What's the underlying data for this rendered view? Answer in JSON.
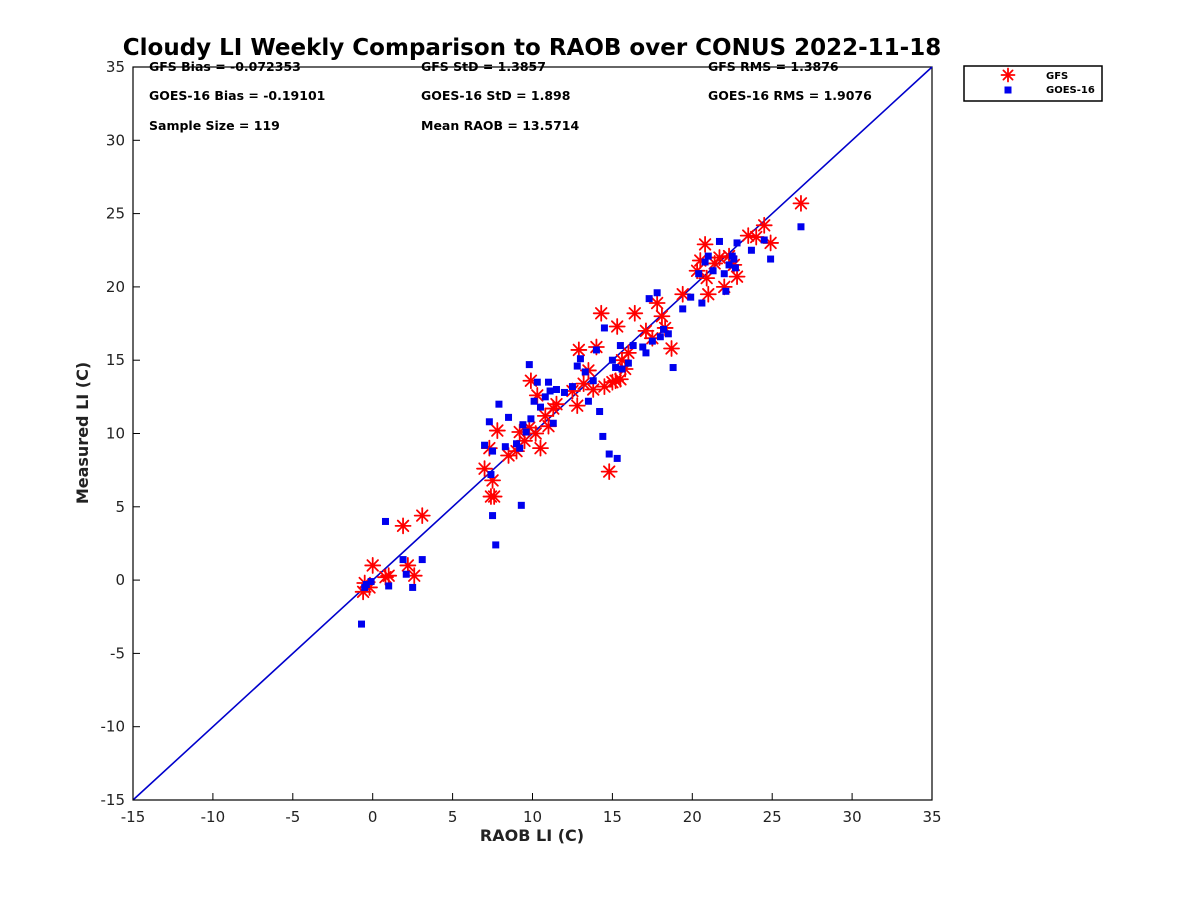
{
  "chart_data": {
    "type": "scatter",
    "title": "Cloudy LI Weekly Comparison to RAOB over CONUS 2022-11-18",
    "xlabel": "RAOB LI (C)",
    "ylabel": "Measured LI (C)",
    "xlim": [
      -15,
      35
    ],
    "ylim": [
      -15,
      35
    ],
    "xticks": [
      "-15",
      "-10",
      "-5",
      "0",
      "5",
      "10",
      "15",
      "20",
      "25",
      "30",
      "35"
    ],
    "yticks": [
      "-15",
      "-10",
      "-5",
      "0",
      "5",
      "10",
      "15",
      "20",
      "25",
      "30",
      "35"
    ],
    "reference_line": {
      "name": "1:1 line",
      "color": "#0000cc"
    },
    "legend": {
      "location": "top-right outside"
    },
    "stats": [
      "GFS Bias = -0.072353",
      "GFS StD = 1.3857",
      "GFS RMS = 1.3876",
      "GOES-16 Bias = -0.19101",
      "GOES-16 StD = 1.898",
      "GOES-16 RMS = 1.9076",
      "Sample Size = 119",
      "Mean RAOB = 13.5714"
    ],
    "series": [
      {
        "name": "GFS",
        "marker": "asterisk",
        "color": "#ff0000",
        "points": [
          [
            -0.6,
            -0.8
          ],
          [
            -0.5,
            -0.2
          ],
          [
            -0.2,
            -0.5
          ],
          [
            0.0,
            1.0
          ],
          [
            0.8,
            0.2
          ],
          [
            1.0,
            0.3
          ],
          [
            1.9,
            3.7
          ],
          [
            2.2,
            1.0
          ],
          [
            2.6,
            0.3
          ],
          [
            3.1,
            4.4
          ],
          [
            7.0,
            7.6
          ],
          [
            7.3,
            9.0
          ],
          [
            7.5,
            6.8
          ],
          [
            7.4,
            5.7
          ],
          [
            7.6,
            5.7
          ],
          [
            7.8,
            10.2
          ],
          [
            8.5,
            8.5
          ],
          [
            9.0,
            8.8
          ],
          [
            9.2,
            10.1
          ],
          [
            9.5,
            9.5
          ],
          [
            9.8,
            10.4
          ],
          [
            9.9,
            13.6
          ],
          [
            10.2,
            10.0
          ],
          [
            10.3,
            12.6
          ],
          [
            10.5,
            9.0
          ],
          [
            10.8,
            11.2
          ],
          [
            11.0,
            10.5
          ],
          [
            11.3,
            11.7
          ],
          [
            11.5,
            12.0
          ],
          [
            12.5,
            12.9
          ],
          [
            12.8,
            11.9
          ],
          [
            12.9,
            15.7
          ],
          [
            13.2,
            13.4
          ],
          [
            13.5,
            14.3
          ],
          [
            13.8,
            13.0
          ],
          [
            14.0,
            15.9
          ],
          [
            14.3,
            18.2
          ],
          [
            14.5,
            13.2
          ],
          [
            14.8,
            7.4
          ],
          [
            15.0,
            13.5
          ],
          [
            15.2,
            13.6
          ],
          [
            15.3,
            17.3
          ],
          [
            15.5,
            13.7
          ],
          [
            15.6,
            15.0
          ],
          [
            15.8,
            14.4
          ],
          [
            16.0,
            15.5
          ],
          [
            16.4,
            18.2
          ],
          [
            17.1,
            17.0
          ],
          [
            17.5,
            16.5
          ],
          [
            17.8,
            18.9
          ],
          [
            18.1,
            18.0
          ],
          [
            18.3,
            17.2
          ],
          [
            18.7,
            15.8
          ],
          [
            19.4,
            19.5
          ],
          [
            20.3,
            21.1
          ],
          [
            20.5,
            21.8
          ],
          [
            20.8,
            22.9
          ],
          [
            20.9,
            20.6
          ],
          [
            21.0,
            19.5
          ],
          [
            21.4,
            21.6
          ],
          [
            21.7,
            22.0
          ],
          [
            22.0,
            20.0
          ],
          [
            22.3,
            22.1
          ],
          [
            22.6,
            21.5
          ],
          [
            22.8,
            20.7
          ],
          [
            23.5,
            23.5
          ],
          [
            24.0,
            23.4
          ],
          [
            24.5,
            24.2
          ],
          [
            24.9,
            23.0
          ],
          [
            26.8,
            25.7
          ]
        ]
      },
      {
        "name": "GOES-16",
        "marker": "square",
        "color": "#0000ee",
        "points": [
          [
            -0.7,
            -3.0
          ],
          [
            -0.5,
            -0.5
          ],
          [
            -0.4,
            -0.3
          ],
          [
            -0.1,
            -0.1
          ],
          [
            0.8,
            4.0
          ],
          [
            1.0,
            -0.4
          ],
          [
            1.9,
            1.4
          ],
          [
            2.1,
            0.4
          ],
          [
            2.5,
            -0.5
          ],
          [
            3.1,
            1.4
          ],
          [
            7.0,
            9.2
          ],
          [
            7.3,
            10.8
          ],
          [
            7.4,
            7.2
          ],
          [
            7.5,
            8.8
          ],
          [
            7.5,
            4.4
          ],
          [
            7.7,
            2.4
          ],
          [
            7.9,
            12.0
          ],
          [
            8.3,
            9.1
          ],
          [
            8.5,
            11.1
          ],
          [
            9.0,
            9.3
          ],
          [
            9.2,
            9.0
          ],
          [
            9.3,
            5.1
          ],
          [
            9.4,
            10.6
          ],
          [
            9.6,
            10.1
          ],
          [
            9.8,
            14.7
          ],
          [
            9.9,
            11.0
          ],
          [
            10.1,
            12.2
          ],
          [
            10.3,
            13.5
          ],
          [
            10.5,
            11.8
          ],
          [
            10.8,
            12.5
          ],
          [
            11.0,
            13.5
          ],
          [
            11.1,
            12.9
          ],
          [
            11.3,
            10.7
          ],
          [
            11.5,
            13.0
          ],
          [
            12.0,
            12.8
          ],
          [
            12.5,
            13.2
          ],
          [
            12.8,
            14.6
          ],
          [
            13.0,
            15.1
          ],
          [
            13.3,
            14.2
          ],
          [
            13.5,
            12.2
          ],
          [
            13.8,
            13.6
          ],
          [
            14.0,
            15.7
          ],
          [
            14.2,
            11.5
          ],
          [
            14.4,
            9.8
          ],
          [
            14.5,
            17.2
          ],
          [
            14.8,
            8.6
          ],
          [
            15.0,
            15.0
          ],
          [
            15.2,
            14.5
          ],
          [
            15.3,
            8.3
          ],
          [
            15.5,
            16.0
          ],
          [
            15.6,
            14.4
          ],
          [
            16.0,
            14.8
          ],
          [
            16.3,
            16.0
          ],
          [
            16.9,
            15.9
          ],
          [
            17.1,
            15.5
          ],
          [
            17.3,
            19.2
          ],
          [
            17.5,
            16.3
          ],
          [
            17.8,
            19.6
          ],
          [
            18.0,
            16.6
          ],
          [
            18.2,
            17.1
          ],
          [
            18.5,
            16.8
          ],
          [
            18.8,
            14.5
          ],
          [
            19.4,
            18.5
          ],
          [
            19.9,
            19.3
          ],
          [
            20.4,
            20.9
          ],
          [
            20.6,
            18.9
          ],
          [
            20.8,
            21.7
          ],
          [
            21.0,
            22.1
          ],
          [
            21.3,
            21.1
          ],
          [
            21.7,
            23.1
          ],
          [
            22.0,
            20.9
          ],
          [
            22.1,
            19.7
          ],
          [
            22.3,
            21.5
          ],
          [
            22.5,
            22.1
          ],
          [
            22.6,
            21.9
          ],
          [
            22.7,
            21.3
          ],
          [
            22.8,
            23.0
          ],
          [
            23.7,
            22.5
          ],
          [
            24.5,
            23.2
          ],
          [
            24.9,
            21.9
          ],
          [
            26.8,
            24.1
          ]
        ]
      }
    ]
  }
}
